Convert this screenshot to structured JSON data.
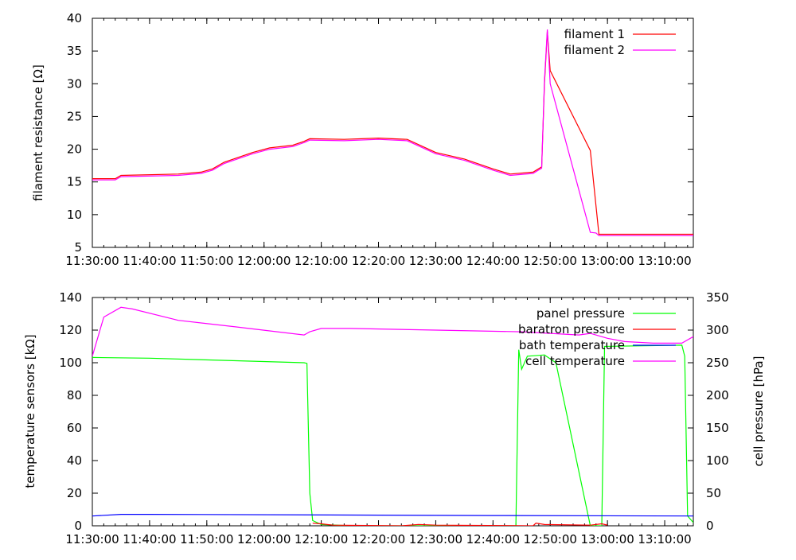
{
  "chart_data": [
    {
      "type": "line",
      "ylabel": "filament resistance [Ω]",
      "ylim": [
        5,
        40
      ],
      "yticks": [
        "5",
        "10",
        "15",
        "20",
        "25",
        "30",
        "35",
        "40"
      ],
      "xlim": [
        "11:30:00",
        "13:15:00"
      ],
      "xticks": [
        "11:30:00",
        "11:40:00",
        "11:50:00",
        "12:00:00",
        "12:10:00",
        "12:20:00",
        "12:30:00",
        "12:40:00",
        "12:50:00",
        "13:00:00",
        "13:10:00"
      ],
      "grid": false,
      "legend_position": "top-right",
      "series": [
        {
          "name": "filament 1",
          "color": "#ff0000",
          "points": [
            [
              "11:30:00",
              15.5
            ],
            [
              "11:34:00",
              15.5
            ],
            [
              "11:35:00",
              16.0
            ],
            [
              "11:45:00",
              16.2
            ],
            [
              "11:49:00",
              16.5
            ],
            [
              "11:51:00",
              17.0
            ],
            [
              "11:53:00",
              18.0
            ],
            [
              "11:58:00",
              19.5
            ],
            [
              "12:01:00",
              20.2
            ],
            [
              "12:05:00",
              20.6
            ],
            [
              "12:07:00",
              21.2
            ],
            [
              "12:08:00",
              21.6
            ],
            [
              "12:14:00",
              21.5
            ],
            [
              "12:20:00",
              21.7
            ],
            [
              "12:25:00",
              21.5
            ],
            [
              "12:30:00",
              19.5
            ],
            [
              "12:35:00",
              18.5
            ],
            [
              "12:40:00",
              17.0
            ],
            [
              "12:43:00",
              16.2
            ],
            [
              "12:47:00",
              16.5
            ],
            [
              "12:48:30",
              17.3
            ],
            [
              "12:49:00",
              30.0
            ],
            [
              "12:49:30",
              38.0
            ],
            [
              "12:50:00",
              32.0
            ],
            [
              "12:57:00",
              19.8
            ],
            [
              "12:58:30",
              7.0
            ],
            [
              "13:15:00",
              7.0
            ]
          ]
        },
        {
          "name": "filament 2",
          "color": "#ff00ff",
          "points": [
            [
              "11:30:00",
              15.3
            ],
            [
              "11:34:00",
              15.3
            ],
            [
              "11:35:00",
              15.8
            ],
            [
              "11:45:00",
              16.0
            ],
            [
              "11:49:00",
              16.3
            ],
            [
              "11:51:00",
              16.8
            ],
            [
              "11:53:00",
              17.8
            ],
            [
              "11:58:00",
              19.3
            ],
            [
              "12:01:00",
              20.0
            ],
            [
              "12:05:00",
              20.4
            ],
            [
              "12:07:00",
              21.0
            ],
            [
              "12:08:00",
              21.4
            ],
            [
              "12:14:00",
              21.3
            ],
            [
              "12:20:00",
              21.5
            ],
            [
              "12:25:00",
              21.3
            ],
            [
              "12:30:00",
              19.3
            ],
            [
              "12:35:00",
              18.3
            ],
            [
              "12:40:00",
              16.8
            ],
            [
              "12:43:00",
              16.0
            ],
            [
              "12:47:00",
              16.3
            ],
            [
              "12:48:30",
              17.1
            ],
            [
              "12:49:00",
              30.5
            ],
            [
              "12:49:30",
              38.3
            ],
            [
              "12:50:00",
              30.0
            ],
            [
              "12:57:00",
              7.3
            ],
            [
              "12:58:00",
              7.2
            ],
            [
              "12:58:30",
              6.8
            ],
            [
              "13:15:00",
              6.8
            ]
          ]
        }
      ]
    },
    {
      "type": "line",
      "ylabel": "temperature sensors [kΩ]",
      "y2label": "cell pressure [hPa]",
      "ylim": [
        0,
        140
      ],
      "y2lim": [
        0,
        350
      ],
      "yticks": [
        "0",
        "20",
        "40",
        "60",
        "80",
        "100",
        "120",
        "140"
      ],
      "y2ticks": [
        "0",
        "50",
        "100",
        "150",
        "200",
        "250",
        "300",
        "350"
      ],
      "xlim": [
        "11:30:00",
        "13:15:00"
      ],
      "xticks": [
        "11:30:00",
        "11:40:00",
        "11:50:00",
        "12:00:00",
        "12:10:00",
        "12:20:00",
        "12:30:00",
        "12:40:00",
        "12:50:00",
        "13:00:00",
        "13:10:00"
      ],
      "grid": false,
      "legend_position": "top-right",
      "series": [
        {
          "name": "panel pressure",
          "color": "#00ff00",
          "axis": "y2",
          "points": [
            [
              "11:30:00",
              258
            ],
            [
              "11:40:00",
              257
            ],
            [
              "12:07:00",
              250
            ],
            [
              "12:07:30",
              249
            ],
            [
              "12:08:00",
              50
            ],
            [
              "12:08:30",
              8
            ],
            [
              "12:10:00",
              2
            ],
            [
              "12:15:00",
              0
            ],
            [
              "12:44:00",
              0
            ],
            [
              "12:44:30",
              270
            ],
            [
              "12:45:00",
              240
            ],
            [
              "12:46:00",
              260
            ],
            [
              "12:49:00",
              262
            ],
            [
              "12:51:00",
              250
            ],
            [
              "12:57:00",
              0
            ],
            [
              "12:59:00",
              0
            ],
            [
              "12:59:30",
              275
            ],
            [
              "13:13:00",
              277
            ],
            [
              "13:13:30",
              260
            ],
            [
              "13:14:00",
              15
            ],
            [
              "13:15:00",
              5
            ]
          ]
        },
        {
          "name": "baratron pressure",
          "color": "#ff0000",
          "axis": "y2",
          "points": [
            [
              "12:08:30",
              4
            ],
            [
              "12:10:00",
              3
            ],
            [
              "12:12:00",
              1
            ],
            [
              "12:24:00",
              0
            ],
            [
              "12:27:00",
              2
            ],
            [
              "12:30:00",
              1
            ],
            [
              "12:47:00",
              0
            ],
            [
              "12:47:30",
              4
            ],
            [
              "12:49:00",
              2
            ],
            [
              "12:57:00",
              1
            ],
            [
              "12:59:00",
              3
            ],
            [
              "13:00:00",
              1
            ]
          ]
        },
        {
          "name": "bath temperature",
          "color": "#0000ff",
          "axis": "y",
          "points": [
            [
              "11:30:00",
              6
            ],
            [
              "11:35:00",
              7
            ],
            [
              "11:40:00",
              7
            ],
            [
              "12:40:00",
              6.3
            ],
            [
              "13:15:00",
              6
            ]
          ]
        },
        {
          "name": "cell temperature",
          "color": "#ff00ff",
          "axis": "y",
          "points": [
            [
              "11:30:00",
              104
            ],
            [
              "11:32:00",
              128
            ],
            [
              "11:35:00",
              134
            ],
            [
              "11:37:00",
              133
            ],
            [
              "11:45:00",
              126
            ],
            [
              "11:55:00",
              122
            ],
            [
              "12:07:00",
              117
            ],
            [
              "12:08:00",
              119
            ],
            [
              "12:10:00",
              121
            ],
            [
              "12:15:00",
              121
            ],
            [
              "12:30:00",
              120
            ],
            [
              "12:45:00",
              119
            ],
            [
              "12:50:00",
              118
            ],
            [
              "12:55:00",
              117
            ],
            [
              "12:57:00",
              118
            ],
            [
              "13:00:00",
              115
            ],
            [
              "13:03:00",
              113
            ],
            [
              "13:08:00",
              112
            ],
            [
              "13:13:00",
              112
            ],
            [
              "13:15:00",
              116
            ]
          ]
        }
      ]
    }
  ]
}
